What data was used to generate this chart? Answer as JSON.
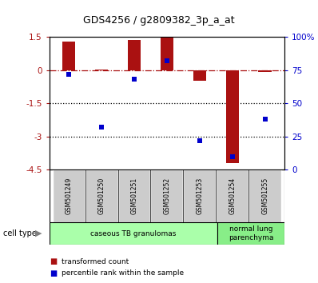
{
  "title": "GDS4256 / g2809382_3p_a_at",
  "samples": [
    "GSM501249",
    "GSM501250",
    "GSM501251",
    "GSM501252",
    "GSM501253",
    "GSM501254",
    "GSM501255"
  ],
  "transformed_count": [
    1.3,
    0.02,
    1.35,
    1.45,
    -0.5,
    -4.2,
    -0.1
  ],
  "percentile_rank": [
    72,
    32,
    68,
    82,
    22,
    10,
    38
  ],
  "ylim_left": [
    -4.5,
    1.5
  ],
  "ylim_right": [
    0,
    100
  ],
  "yticks_left": [
    1.5,
    0.0,
    -1.5,
    -3.0,
    -4.5
  ],
  "yticks_right": [
    0,
    25,
    50,
    75,
    100
  ],
  "ytick_labels_left": [
    "1.5",
    "0",
    "-1.5",
    "-3",
    "-4.5"
  ],
  "ytick_labels_right": [
    "0",
    "25",
    "50",
    "75",
    "100%"
  ],
  "hlines_dotted": [
    -1.5,
    -3.0
  ],
  "hline_dash": 0.0,
  "bar_color": "#AA1111",
  "dot_color": "#0000CC",
  "bar_width": 0.4,
  "cell_type_groups": [
    {
      "label": "caseous TB granulomas",
      "samples_count": 5,
      "color": "#AAFFAA"
    },
    {
      "label": "normal lung\nparenchyma",
      "samples_count": 2,
      "color": "#88EE88"
    }
  ],
  "cell_type_label": "cell type",
  "legend_bar_label": "transformed count",
  "legend_dot_label": "percentile rank within the sample",
  "tick_area_color": "#CCCCCC",
  "plot_bg": "white",
  "fig_bg": "white"
}
